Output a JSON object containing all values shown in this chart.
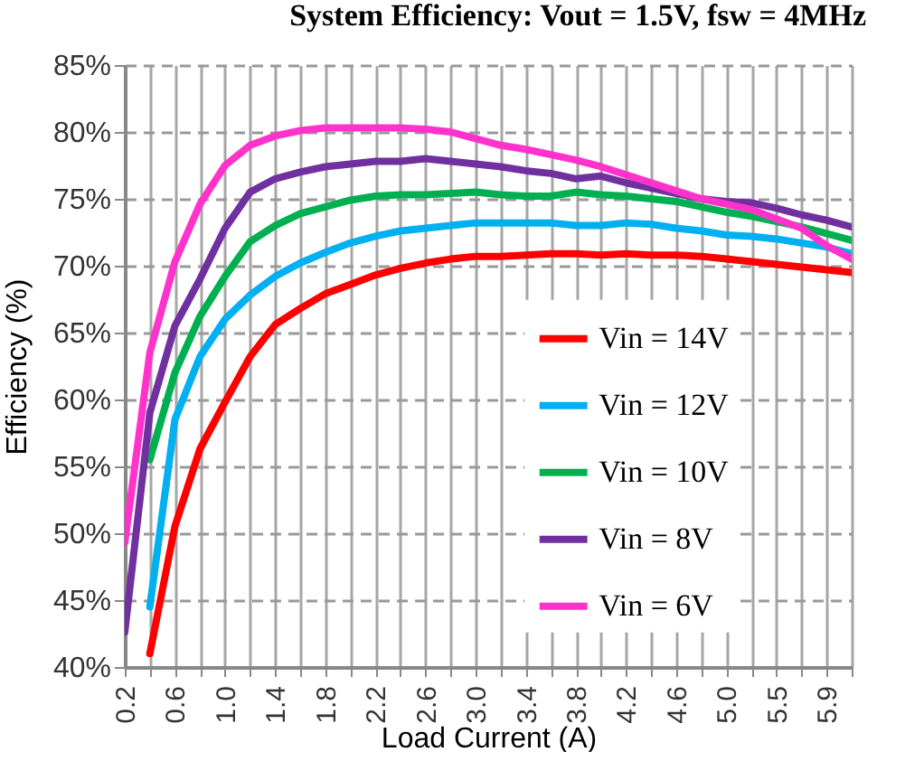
{
  "chart_data": {
    "type": "line",
    "title": "System Efficiency: Vout = 1.5V, fsw = 4MHz",
    "xlabel": "Load Current (A)",
    "ylabel": "Efficiency (%)",
    "categories": [
      "0.2",
      null,
      "0.6",
      null,
      "1.0",
      null,
      "1.4",
      null,
      "1.8",
      null,
      "2.2",
      null,
      "2.6",
      null,
      "3.0",
      null,
      "3.4",
      null,
      "3.8",
      null,
      "4.2",
      null,
      "4.6",
      null,
      "5.0",
      null,
      "5.5",
      null,
      "5.9",
      null
    ],
    "series": [
      {
        "name": "Vin = 14V",
        "color": "#ff0000",
        "values": [
          null,
          41,
          50.5,
          56.3,
          59.8,
          63.2,
          65.6,
          66.8,
          67.9,
          68.6,
          69.3,
          69.8,
          70.2,
          70.5,
          70.7,
          70.7,
          70.8,
          70.9,
          70.9,
          70.8,
          70.9,
          70.8,
          70.8,
          70.7,
          70.5,
          70.3,
          70.1,
          69.9,
          69.7,
          69.5
        ]
      },
      {
        "name": "Vin = 12V",
        "color": "#00b0f0",
        "values": [
          null,
          44.5,
          58.5,
          63.2,
          66.0,
          67.8,
          69.2,
          70.2,
          71.0,
          71.7,
          72.2,
          72.6,
          72.8,
          73.0,
          73.2,
          73.2,
          73.2,
          73.2,
          73.0,
          73.0,
          73.2,
          73.1,
          72.8,
          72.6,
          72.3,
          72.2,
          72.0,
          71.7,
          71.4,
          70.9
        ]
      },
      {
        "name": "Vin = 10V",
        "color": "#00b050",
        "values": [
          null,
          55.5,
          62.0,
          66.2,
          69.2,
          71.8,
          73.0,
          73.9,
          74.4,
          74.9,
          75.2,
          75.3,
          75.3,
          75.4,
          75.5,
          75.3,
          75.2,
          75.2,
          75.5,
          75.3,
          75.2,
          75.0,
          74.8,
          74.4,
          74.0,
          73.7,
          73.3,
          72.9,
          72.4,
          71.9
        ]
      },
      {
        "name": "Vin = 8V",
        "color": "#7030a0",
        "values": [
          42.6,
          59,
          65.5,
          69.0,
          72.8,
          75.5,
          76.5,
          77.0,
          77.4,
          77.6,
          77.8,
          77.8,
          78.0,
          77.8,
          77.6,
          77.4,
          77.1,
          76.9,
          76.5,
          76.7,
          76.2,
          75.8,
          75.4,
          75.0,
          74.8,
          74.7,
          74.3,
          73.8,
          73.4,
          72.9
        ]
      },
      {
        "name": "Vin = 6V",
        "color": "#ff33cc",
        "values": [
          49.3,
          63.5,
          70.3,
          74.6,
          77.5,
          79.0,
          79.7,
          80.1,
          80.3,
          80.3,
          80.3,
          80.3,
          80.2,
          80.0,
          79.5,
          79.0,
          78.7,
          78.3,
          77.9,
          77.4,
          76.8,
          76.2,
          75.6,
          75.0,
          74.6,
          74.2,
          73.5,
          72.8,
          71.5,
          70.5
        ]
      }
    ],
    "ylim": [
      40,
      85
    ],
    "yticks": [
      {
        "value": 40,
        "label": "40%"
      },
      {
        "value": 45,
        "label": "45%"
      },
      {
        "value": 50,
        "label": "50%"
      },
      {
        "value": 55,
        "label": "55%"
      },
      {
        "value": 60,
        "label": "60%"
      },
      {
        "value": 65,
        "label": "65%"
      },
      {
        "value": 70,
        "label": "70%"
      },
      {
        "value": 75,
        "label": "75%"
      },
      {
        "value": 80,
        "label": "80%"
      },
      {
        "value": 85,
        "label": "85%"
      }
    ],
    "grid": true,
    "legend": "right",
    "line_style": "solid"
  }
}
